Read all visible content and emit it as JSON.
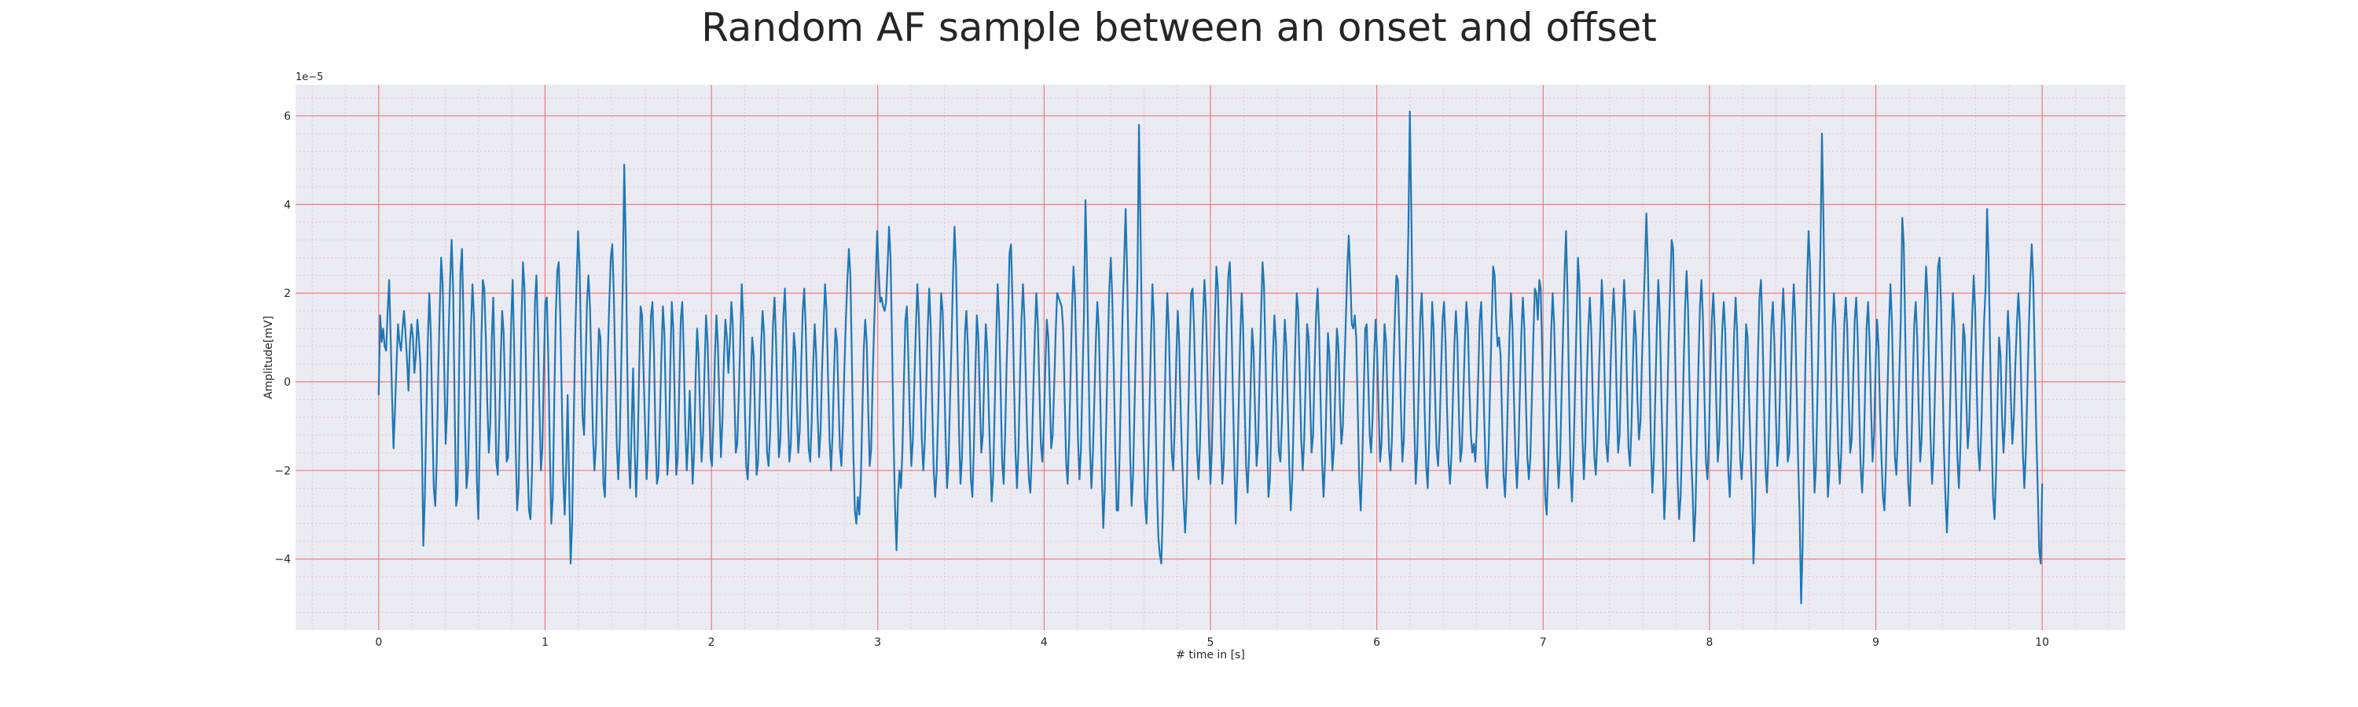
{
  "chart_data": {
    "type": "line",
    "title": "Random AF sample between an onset and offset",
    "xlabel": "# time in [s]",
    "ylabel": "Amplitude[mV]",
    "y_offset_label": "1e−5",
    "xlim": [
      -0.5,
      10.5
    ],
    "ylim": [
      -5.6,
      6.7
    ],
    "x_ticks": [
      0,
      1,
      2,
      3,
      4,
      5,
      6,
      7,
      8,
      9,
      10
    ],
    "y_ticks": [
      -4,
      -2,
      0,
      2,
      4,
      6
    ],
    "x_tick_labels": [
      "0",
      "1",
      "2",
      "3",
      "4",
      "5",
      "6",
      "7",
      "8",
      "9",
      "10"
    ],
    "y_tick_labels": [
      "−4",
      "−2",
      "0",
      "2",
      "4",
      "6"
    ],
    "grid": "major and minor, red",
    "colors": {
      "line": "#1f77b4",
      "plot_bg": "#eaeaf2",
      "major_grid": "#f07070",
      "minor_grid": "#f2b8c6"
    },
    "y_scale_factor": 1e-05,
    "sample_step": 0.01,
    "series": [
      {
        "x_start": 0,
        "values": [
          -0.3,
          1.5,
          0.9,
          1.2,
          0.8,
          0.7,
          1.6,
          2.3,
          1.0,
          -0.4,
          -1.5,
          -0.6,
          0.4,
          1.3,
          0.9,
          0.7,
          1.2,
          1.6,
          1.1,
          0.5,
          -0.2,
          0.9,
          1.3,
          1.0,
          0.2,
          0.6,
          1.4,
          1.0,
          0.4,
          -1.3,
          -3.7,
          -2.6,
          -0.8,
          0.9,
          2.0,
          1.1,
          -0.8,
          -2.4,
          -2.8,
          -1.8,
          0.1,
          1.6,
          2.8,
          2.2,
          0.4,
          -1.4,
          -0.6,
          1.1,
          2.3,
          3.2,
          2.1,
          -0.5,
          -2.8,
          -2.6,
          0.2,
          2.5,
          3.0,
          1.4,
          -0.9,
          -2.4,
          -2.0,
          -0.6,
          1.2,
          2.2,
          1.5,
          -0.2,
          -2.3,
          -3.1,
          -1.2,
          0.9,
          2.3,
          2.1,
          1.0,
          -0.5,
          -1.6,
          -0.9,
          1.0,
          1.9,
          0.2,
          -1.8,
          -2.1,
          -0.9,
          0.5,
          1.6,
          1.1,
          -0.4,
          -1.8,
          -1.7,
          -0.3,
          1.3,
          2.3,
          0.8,
          -1.4,
          -2.9,
          -2.4,
          -0.6,
          1.4,
          2.7,
          2.1,
          0.3,
          -1.8,
          -2.9,
          -3.1,
          -2.1,
          -0.1,
          1.8,
          2.4,
          1.1,
          -0.6,
          -2.0,
          -1.5,
          0.3,
          1.8,
          1.9,
          0.5,
          -1.5,
          -3.2,
          -2.6,
          -0.4,
          1.5,
          2.5,
          2.7,
          1.5,
          -0.3,
          -2.1,
          -3.0,
          -1.9,
          -0.3,
          -2.3,
          -4.1,
          -3.2,
          -1.1,
          0.9,
          2.3,
          3.4,
          2.6,
          0.8,
          -0.8,
          -1.2,
          0.2,
          1.8,
          2.4,
          1.7,
          0.3,
          -1.2,
          -2.0,
          -1.4,
          0.1,
          1.2,
          1.0,
          -0.7,
          -2.3,
          -2.6,
          -1.2,
          0.6,
          1.8,
          2.8,
          3.1,
          2.0,
          0.3,
          -1.4,
          -2.2,
          -1.3,
          0.4,
          2.2,
          4.9,
          3.2,
          0.6,
          -1.6,
          -2.4,
          -1.0,
          0.3,
          -1.5,
          -2.6,
          -1.6,
          0.2,
          1.7,
          1.5,
          0.2,
          -1.0,
          -2.2,
          -1.5,
          0.1,
          1.5,
          1.8,
          0.7,
          -1.2,
          -2.3,
          -2.1,
          -0.8,
          0.6,
          1.7,
          1.1,
          -0.6,
          -2.1,
          -1.5,
          0.4,
          1.8,
          1.2,
          -0.5,
          -2.1,
          -1.7,
          -0.1,
          1.4,
          1.8,
          0.7,
          -1.0,
          -2.0,
          -1.3,
          -0.2,
          -1.1,
          -2.3,
          -1.6,
          0.1,
          1.2,
          0.6,
          -0.7,
          -1.8,
          -1.2,
          0.3,
          1.5,
          0.9,
          -0.3,
          -1.7,
          -1.9,
          -0.9,
          0.6,
          1.5,
          0.8,
          -0.5,
          -1.7,
          -0.9,
          0.5,
          1.4,
          1.0,
          0.2,
          0.9,
          1.8,
          1.3,
          -0.2,
          -1.6,
          -1.4,
          -0.3,
          0.9,
          2.2,
          1.4,
          -0.4,
          -1.9,
          -2.2,
          -1.3,
          -0.1,
          1.0,
          0.6,
          -0.9,
          -2.1,
          -1.8,
          -0.5,
          0.8,
          1.6,
          1.1,
          -0.3,
          -1.6,
          -1.9,
          -1.2,
          0.0,
          1.3,
          1.9,
          1.0,
          -0.5,
          -1.7,
          -1.3,
          0.2,
          1.5,
          2.1,
          1.0,
          -0.7,
          -1.8,
          -1.4,
          -0.1,
          1.1,
          0.7,
          -0.6,
          -1.6,
          -1.1,
          0.4,
          1.6,
          2.1,
          1.2,
          -0.3,
          -1.5,
          -1.8,
          -0.9,
          0.4,
          1.3,
          0.6,
          -0.8,
          -1.7,
          -1.1,
          0.3,
          1.3,
          2.2,
          1.6,
          0.1,
          -1.3,
          -2.0,
          -1.2,
          0.2,
          1.2,
          0.9,
          -0.4,
          -1.5,
          -1.9,
          -1.0,
          0.3,
          1.4,
          2.3,
          3.0,
          2.4,
          0.5,
          -1.6,
          -2.9,
          -3.2,
          -2.6,
          -3.0,
          -2.3,
          -0.8,
          0.7,
          1.4,
          0.9,
          -0.6,
          -1.9,
          -1.5,
          0.1,
          1.3,
          2.3,
          3.4,
          2.5,
          1.8,
          1.9,
          1.7,
          1.6,
          1.8,
          2.6,
          3.5,
          2.8,
          0.9,
          -1.2,
          -2.8,
          -3.8,
          -2.6,
          -2.0,
          -2.4,
          -1.5,
          0.0,
          1.4,
          1.7,
          0.5,
          -0.9,
          -1.9,
          -1.3,
          0.0,
          1.2,
          2.2,
          1.5,
          0.1,
          -1.3,
          -2.0,
          -1.4,
          -0.1,
          1.2,
          2.1,
          1.3,
          -0.5,
          -2.0,
          -2.6,
          -2.0,
          -0.7,
          0.8,
          2.0,
          1.6,
          0.3,
          -1.2,
          -2.4,
          -1.8,
          -0.4,
          0.9,
          2.4,
          3.5,
          2.6,
          0.7,
          -1.1,
          -2.3,
          -1.7,
          -0.3,
          1.1,
          1.6,
          0.8,
          -0.8,
          -2.2,
          -2.6,
          -1.5,
          0.2,
          1.5,
          1.0,
          -0.4,
          -1.6,
          -1.2,
          0.2,
          1.3,
          0.7,
          -0.6,
          -1.7,
          -2.7,
          -2.1,
          -0.6,
          1.0,
          2.2,
          1.4,
          -0.2,
          -1.8,
          -2.3,
          -1.2,
          0.4,
          1.5,
          2.9,
          3.1,
          1.8,
          0.0,
          -1.6,
          -2.4,
          -1.5,
          0.1,
          1.4,
          2.2,
          1.4,
          -0.1,
          -1.4,
          -2.2,
          -2.5,
          -1.6,
          -0.2,
          1.1,
          2.0,
          1.3,
          -0.1,
          -1.4,
          -1.8,
          -1.0,
          0.3,
          1.4,
          1.0,
          -0.3,
          -1.5,
          -1.2,
          -0.1,
          1.1,
          2.0,
          1.9,
          1.8,
          1.7,
          1.2,
          -0.3,
          -1.8,
          -2.3,
          -1.3,
          0.2,
          1.7,
          2.6,
          1.9,
          0.4,
          -1.3,
          -2.2,
          -1.5,
          0.1,
          1.5,
          4.1,
          2.6,
          0.5,
          -1.5,
          -2.4,
          -1.6,
          -0.4,
          0.9,
          1.8,
          1.2,
          -0.4,
          -2.1,
          -3.3,
          -2.4,
          -0.8,
          0.7,
          2.1,
          2.8,
          1.9,
          0.3,
          -1.5,
          -2.9,
          -2.9,
          -1.6,
          0.1,
          1.6,
          2.7,
          3.9,
          2.5,
          0.4,
          -1.6,
          -2.8,
          -2.1,
          -0.5,
          1.0,
          2.4,
          5.8,
          3.5,
          1.0,
          -1.3,
          -2.7,
          -3.2,
          -2.1,
          -0.6,
          0.9,
          2.2,
          1.4,
          -0.6,
          -2.4,
          -3.5,
          -3.9,
          -4.1,
          -2.9,
          -1.0,
          0.8,
          2.0,
          1.2,
          -0.3,
          -1.6,
          -2.0,
          -1.0,
          0.5,
          1.6,
          0.9,
          -0.6,
          -1.8,
          -2.7,
          -3.4,
          -2.6,
          -0.9,
          0.7,
          2.0,
          2.1,
          1.2,
          -0.3,
          -1.6,
          -2.2,
          -1.4,
          0.0,
          1.4,
          2.3,
          1.6,
          0.2,
          -1.3,
          -2.3,
          -1.5,
          0.0,
          1.4,
          2.6,
          2.1,
          0.6,
          -1.1,
          -2.3,
          -1.8,
          -0.3,
          1.2,
          2.4,
          2.7,
          1.6,
          -0.1,
          -1.7,
          -3.2,
          -2.1,
          -0.5,
          1.0,
          2.0,
          1.2,
          -0.5,
          -1.9,
          -2.5,
          -1.6,
          -0.1,
          1.2,
          0.7,
          -0.7,
          -1.9,
          -1.4,
          0.1,
          1.5,
          2.7,
          2.2,
          0.6,
          -1.1,
          -2.6,
          -2.2,
          -0.9,
          0.6,
          1.5,
          0.9,
          -0.5,
          -1.6,
          -1.8,
          -0.9,
          0.4,
          1.4,
          0.8,
          -0.6,
          -1.9,
          -2.9,
          -2.2,
          -0.7,
          0.8,
          2.0,
          1.6,
          0.2,
          -1.3,
          -2.0,
          -1.3,
          0.1,
          1.3,
          1.0,
          -0.4,
          -1.6,
          -1.2,
          0.3,
          1.5,
          2.1,
          1.2,
          -0.4,
          -1.8,
          -2.6,
          -1.8,
          -0.3,
          1.1,
          0.6,
          -0.9,
          -2.0,
          -1.5,
          0.0,
          1.2,
          0.8,
          -0.5,
          -1.4,
          -1.0,
          0.3,
          1.4,
          2.6,
          3.3,
          2.4,
          1.3,
          1.2,
          1.5,
          1.0,
          -0.6,
          -2.2,
          -2.9,
          -1.9,
          -0.3,
          1.2,
          1.3,
          0.1,
          -1.2,
          -1.6,
          -0.8,
          0.5,
          1.4,
          0.7,
          -0.6,
          -1.8,
          -1.4,
          0.1,
          1.3,
          0.9,
          -0.4,
          -1.5,
          -2.0,
          -1.3,
          0.2,
          1.5,
          2.4,
          2.3,
          1.0,
          -0.6,
          -1.8,
          -1.3,
          0.2,
          1.6,
          3.4,
          6.1,
          3.8,
          1.2,
          -0.9,
          -2.3,
          -1.6,
          -0.1,
          1.4,
          2.0,
          1.0,
          -0.7,
          -1.9,
          -2.4,
          -1.3,
          0.4,
          1.8,
          1.2,
          -0.3,
          -1.5,
          -1.9,
          -1.1,
          0.2,
          1.4,
          1.8,
          0.9,
          -0.6,
          -1.8,
          -2.3,
          -1.6,
          -0.3,
          0.9,
          1.6,
          0.9,
          -0.7,
          -1.8,
          -1.5,
          -0.3,
          0.9,
          1.8,
          1.3,
          -0.1,
          -1.2,
          -1.6,
          -1.4,
          -1.8,
          -1.1,
          0.1,
          1.4,
          1.8,
          0.7,
          -0.8,
          -2.0,
          -2.4,
          -1.5,
          0.0,
          1.3,
          2.6,
          2.4,
          1.4,
          0.8,
          1.0,
          0.6,
          -0.8,
          -2.1,
          -2.6,
          -1.7,
          -0.2,
          1.1,
          2.0,
          1.2,
          -0.4,
          -1.7,
          -2.4,
          -1.6,
          -0.2,
          1.1,
          1.9,
          1.2,
          -0.4,
          -1.7,
          -2.2,
          -1.7,
          -0.4,
          1.0,
          2.1,
          2.0,
          1.4,
          2.3,
          2.1,
          0.6,
          -1.2,
          -2.6,
          -3.0,
          -1.9,
          -0.3,
          1.1,
          2.0,
          1.3,
          -0.2,
          -1.6,
          -2.4,
          -1.7,
          -0.3,
          1.1,
          2.4,
          3.4,
          2.0,
          -0.2,
          -2.0,
          -2.7,
          -1.7,
          -0.2,
          1.3,
          2.8,
          2.2,
          0.5,
          -1.2,
          -2.2,
          -1.4,
          0.1,
          1.2,
          1.9,
          1.1,
          -0.5,
          -1.7,
          -2.1,
          -1.3,
          0.1,
          1.2,
          2.3,
          1.6,
          0.0,
          -1.4,
          -1.8,
          -1.0,
          0.4,
          1.4,
          2.1,
          1.3,
          -0.3,
          -1.6,
          -1.2,
          0.3,
          1.4,
          2.3,
          1.6,
          -0.1,
          -1.5,
          -1.9,
          -1.0,
          0.5,
          1.6,
          1.0,
          -0.4,
          -1.3,
          -0.9,
          0.5,
          1.6,
          2.6,
          3.8,
          2.7,
          0.8,
          -1.3,
          -2.5,
          -1.8,
          -0.3,
          1.2,
          2.3,
          1.5,
          -0.2,
          -1.7,
          -3.1,
          -2.3,
          -0.6,
          1.0,
          2.1,
          3.2,
          3.0,
          1.2,
          -0.6,
          -2.2,
          -3.1,
          -2.6,
          -1.3,
          0.3,
          1.7,
          2.5,
          1.6,
          -0.1,
          -1.6,
          -2.4,
          -3.6,
          -2.9,
          -1.3,
          0.4,
          1.7,
          2.3,
          1.4,
          -0.3,
          -1.8,
          -2.2,
          -1.3,
          0.2,
          1.4,
          2.0,
          1.1,
          -0.5,
          -1.8,
          -1.3,
          0.1,
          1.2,
          1.8,
          1.1,
          -0.6,
          -2.0,
          -2.6,
          -1.7,
          -0.2,
          1.1,
          1.9,
          1.1,
          -0.4,
          -1.7,
          -2.2,
          -1.5,
          0.0,
          1.3,
          1.0,
          -0.4,
          -1.6,
          -2.5,
          -4.1,
          -3.1,
          -1.2,
          0.6,
          1.9,
          2.3,
          1.2,
          -0.5,
          -1.9,
          -2.5,
          -1.6,
          0.0,
          1.3,
          1.8,
          0.9,
          -0.7,
          -1.9,
          -1.4,
          0.1,
          1.4,
          2.1,
          1.2,
          -0.4,
          -1.8,
          -1.6,
          -0.2,
          1.3,
          2.2,
          1.5,
          -0.2,
          -1.8,
          -3.0,
          -5.0,
          -3.7,
          -1.4,
          0.7,
          2.3,
          3.4,
          2.6,
          0.9,
          -1.1,
          -2.5,
          -1.9,
          -0.3,
          1.4,
          3.0,
          5.6,
          3.7,
          1.1,
          -1.2,
          -2.6,
          -2.0,
          -0.5,
          1.1,
          2.0,
          1.3,
          -0.3,
          -1.6,
          -2.3,
          -1.6,
          -0.1,
          1.3,
          1.9,
          1.2,
          -0.4,
          -1.6,
          -1.3,
          0.1,
          1.4,
          1.9,
          1.0,
          -0.6,
          -1.9,
          -2.5,
          -1.7,
          -0.2,
          1.2,
          1.8,
          0.9,
          -0.6,
          -1.8,
          -1.2,
          0.3,
          1.4,
          0.8,
          -0.6,
          -1.7,
          -2.6,
          -2.9,
          -1.9,
          -0.3,
          1.2,
          2.2,
          1.4,
          -0.3,
          -1.7,
          -2.1,
          -1.2,
          0.2,
          1.4,
          3.7,
          3.1,
          1.1,
          -0.9,
          -2.3,
          -2.8,
          -1.7,
          -0.1,
          1.3,
          1.8,
          1.0,
          -0.6,
          -1.8,
          -1.3,
          0.2,
          1.6,
          2.6,
          1.9,
          0.3,
          -1.3,
          -2.3,
          -1.6,
          -0.1,
          1.2,
          2.6,
          2.8,
          1.7,
          0.1,
          -1.5,
          -2.6,
          -3.4,
          -2.4,
          -0.7,
          0.9,
          2.0,
          1.3,
          -0.3,
          -1.7,
          -2.4,
          -1.5,
          0.0,
          1.3,
          1.0,
          -0.4,
          -1.5,
          -1.0,
          0.4,
          1.5,
          2.4,
          1.6,
          -0.1,
          -1.5,
          -2.0,
          -1.2,
          0.2,
          1.4,
          2.1,
          3.9,
          2.8,
          0.8,
          -1.2,
          -2.6,
          -3.1,
          -2.1,
          -0.4,
          1.0,
          0.6,
          -0.8,
          -1.6,
          -0.9,
          0.5,
          1.6,
          0.9,
          -0.4,
          -1.4,
          -0.8,
          0.4,
          1.3,
          2.0,
          1.3,
          -0.2,
          -1.6,
          -2.4,
          -1.6,
          -0.2,
          1.1,
          2.3,
          3.1,
          2.3,
          0.6,
          -1.1,
          -2.4,
          -3.8,
          -4.1,
          -2.3
        ]
      }
    ]
  }
}
